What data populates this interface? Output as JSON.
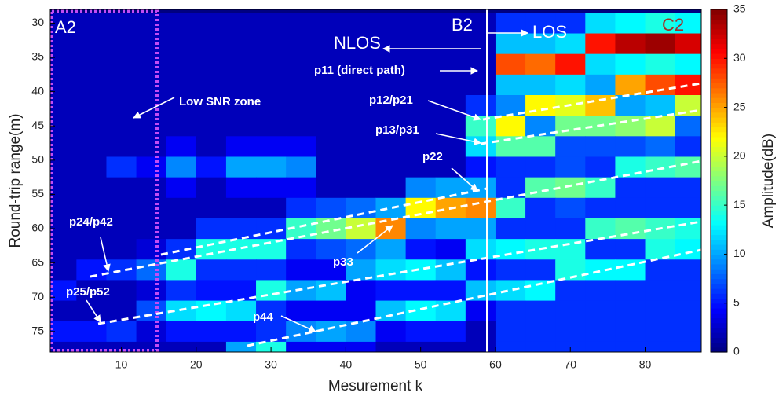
{
  "chart_data": {
    "type": "heatmap",
    "xlabel": "Mesurement k",
    "ylabel": "Round-trip range(m)",
    "colorbar_label": "Amplitude(dB)",
    "colormap": "jet",
    "xlim": [
      0.5,
      87.5
    ],
    "xticks": [
      10,
      20,
      30,
      40,
      50,
      60,
      70,
      80
    ],
    "ylim": [
      28,
      78
    ],
    "yticks": [
      30,
      35,
      40,
      45,
      50,
      55,
      60,
      65,
      70,
      75
    ],
    "y_reversed": true,
    "clim": [
      0,
      35
    ],
    "cticks": [
      0,
      5,
      10,
      15,
      20,
      25,
      30,
      35
    ],
    "x": [
      2,
      6,
      10,
      14,
      18,
      22,
      26,
      30,
      34,
      38,
      42,
      46,
      50,
      54,
      58,
      62,
      66,
      70,
      74,
      78,
      82,
      86
    ],
    "y": [
      30,
      33,
      36,
      39,
      42,
      45,
      48,
      51,
      54,
      57,
      60,
      63,
      66,
      69,
      72,
      75,
      78
    ],
    "z": [
      [
        2,
        2,
        2,
        2,
        2,
        2,
        2,
        2,
        2,
        2,
        2,
        2,
        2,
        2,
        2,
        6,
        6,
        6,
        12,
        13,
        14,
        13
      ],
      [
        2,
        2,
        2,
        2,
        2,
        2,
        2,
        2,
        2,
        2,
        2,
        2,
        2,
        2,
        2,
        11,
        11,
        12,
        30,
        33,
        34,
        32
      ],
      [
        2,
        2,
        2,
        2,
        2,
        2,
        2,
        2,
        2,
        2,
        2,
        2,
        2,
        2,
        2,
        28,
        27,
        30,
        12,
        13,
        14,
        13
      ],
      [
        2,
        2,
        2,
        2,
        2,
        2,
        2,
        2,
        2,
        2,
        2,
        2,
        2,
        2,
        2,
        11,
        11,
        12,
        10,
        25,
        28,
        30
      ],
      [
        2,
        2,
        2,
        2,
        2,
        2,
        2,
        2,
        2,
        2,
        2,
        2,
        2,
        2,
        6,
        9,
        22,
        21,
        24,
        10,
        11,
        20
      ],
      [
        2,
        2,
        2,
        2,
        2,
        2,
        2,
        2,
        2,
        2,
        2,
        2,
        2,
        2,
        15,
        22,
        9,
        17,
        17,
        18,
        20,
        8
      ],
      [
        2,
        2,
        2,
        2,
        4,
        2,
        4,
        4,
        4,
        2,
        2,
        2,
        2,
        2,
        12,
        16,
        16,
        7,
        7,
        7,
        8,
        6
      ],
      [
        2,
        2,
        6,
        4,
        9,
        5,
        10,
        10,
        9,
        2,
        2,
        2,
        2,
        2,
        5,
        6,
        6,
        7,
        6,
        14,
        15,
        16
      ],
      [
        2,
        2,
        2,
        2,
        4,
        2,
        4,
        4,
        4,
        2,
        2,
        2,
        9,
        10,
        10,
        6,
        16,
        17,
        15,
        6,
        6,
        6
      ],
      [
        2,
        2,
        2,
        2,
        2,
        2,
        2,
        2,
        6,
        7,
        8,
        10,
        22,
        25,
        26,
        15,
        6,
        7,
        6,
        6,
        6,
        6
      ],
      [
        2,
        2,
        2,
        2,
        2,
        6,
        6,
        6,
        15,
        17,
        20,
        26,
        9,
        10,
        10,
        6,
        6,
        6,
        15,
        16,
        15,
        14
      ],
      [
        2,
        2,
        2,
        3,
        6,
        14,
        14,
        14,
        6,
        7,
        8,
        10,
        5,
        4,
        12,
        13,
        14,
        14,
        6,
        6,
        14,
        13
      ],
      [
        2,
        5,
        6,
        8,
        14,
        6,
        6,
        6,
        4,
        4,
        10,
        12,
        13,
        11,
        5,
        6,
        6,
        14,
        13,
        13,
        6,
        6
      ],
      [
        5,
        2,
        2,
        3,
        6,
        5,
        5,
        14,
        10,
        11,
        4,
        5,
        5,
        5,
        11,
        12,
        13,
        6,
        6,
        6,
        6,
        6
      ],
      [
        2,
        2,
        2,
        7,
        12,
        13,
        12,
        6,
        4,
        4,
        4,
        11,
        13,
        12,
        4,
        6,
        6,
        6,
        6,
        6,
        6,
        6
      ],
      [
        5,
        5,
        6,
        3,
        5,
        5,
        5,
        6,
        9,
        10,
        9,
        4,
        5,
        5,
        2,
        6,
        6,
        6,
        6,
        6,
        6,
        6
      ],
      [
        2,
        2,
        2,
        2,
        2,
        2,
        10,
        14,
        4,
        4,
        4,
        2,
        2,
        2,
        2,
        6,
        6,
        6,
        6,
        6,
        6,
        6
      ]
    ],
    "annotations": [
      "A2",
      "B2",
      "C2",
      "NLOS",
      "LOS",
      "Low SNR zone",
      "p11 (direct path)",
      "p12/p21",
      "p13/p31",
      "p22",
      "p24/p42",
      "p33",
      "p25/p52",
      "p44"
    ]
  }
}
